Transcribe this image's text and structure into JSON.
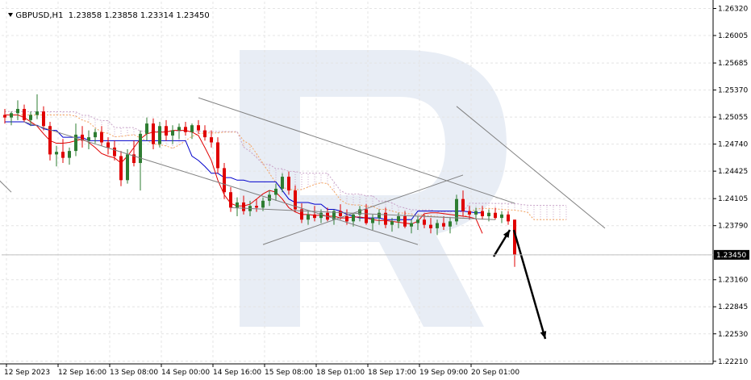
{
  "header": {
    "symbol": "GBPUSD,H1",
    "ohlc": "1.23858 1.23858 1.23314 1.23450"
  },
  "colors": {
    "bull_candle": "#2e7d32",
    "bear_candle": "#e00000",
    "tenkan": "#e00000",
    "kijun": "#0000cc",
    "cloud_a": "#f4a460",
    "cloud_b": "#c8a2c8",
    "trendline": "#808080",
    "arrow": "#000000",
    "watermark": "#e8edf5",
    "price_tag_bg": "#000000",
    "price_tag_fg": "#ffffff"
  },
  "chart_data": {
    "type": "candlestick",
    "title": "GBPUSD,H1",
    "y_ticks": [
      "1.26320",
      "1.26005",
      "1.25685",
      "1.25370",
      "1.25055",
      "1.24740",
      "1.24425",
      "1.24105",
      "1.23790",
      "1.23450",
      "1.23160",
      "1.22845",
      "1.22530",
      "1.22210"
    ],
    "y_tick_values": [
      1.2632,
      1.26005,
      1.25685,
      1.2537,
      1.25055,
      1.2474,
      1.24425,
      1.24105,
      1.2379,
      1.2345,
      1.2316,
      1.22845,
      1.2253,
      1.2221
    ],
    "ylim": [
      1.2218,
      1.264
    ],
    "current_price": "1.23450",
    "x_ticks": [
      "12 Sep 2023",
      "12 Sep 16:00",
      "13 Sep 08:00",
      "14 Sep 00:00",
      "14 Sep 16:00",
      "15 Sep 08:00",
      "18 Sep 01:00",
      "18 Sep 17:00",
      "19 Sep 09:00",
      "20 Sep 01:00"
    ],
    "candles": [
      [
        1.2508,
        1.2515,
        1.2498,
        1.2505
      ],
      [
        1.2505,
        1.2512,
        1.2496,
        1.251
      ],
      [
        1.251,
        1.2525,
        1.2502,
        1.2515
      ],
      [
        1.2515,
        1.252,
        1.25,
        1.2502
      ],
      [
        1.2502,
        1.2512,
        1.2495,
        1.2508
      ],
      [
        1.2508,
        1.2532,
        1.2503,
        1.2512
      ],
      [
        1.2512,
        1.2518,
        1.249,
        1.2495
      ],
      [
        1.2495,
        1.25,
        1.2455,
        1.2462
      ],
      [
        1.2462,
        1.2472,
        1.2448,
        1.2465
      ],
      [
        1.2465,
        1.248,
        1.2452,
        1.2458
      ],
      [
        1.2458,
        1.247,
        1.245,
        1.2466
      ],
      [
        1.2466,
        1.2498,
        1.246,
        1.2485
      ],
      [
        1.2485,
        1.2495,
        1.247,
        1.2478
      ],
      [
        1.2478,
        1.249,
        1.2468,
        1.2482
      ],
      [
        1.2482,
        1.2492,
        1.2475,
        1.2488
      ],
      [
        1.2488,
        1.2495,
        1.2472,
        1.2476
      ],
      [
        1.2476,
        1.2482,
        1.2462,
        1.247
      ],
      [
        1.247,
        1.2478,
        1.2455,
        1.246
      ],
      [
        1.246,
        1.2466,
        1.2425,
        1.2432
      ],
      [
        1.2432,
        1.2468,
        1.2428,
        1.2462
      ],
      [
        1.2462,
        1.2478,
        1.2448,
        1.2452
      ],
      [
        1.2452,
        1.249,
        1.242,
        1.2486
      ],
      [
        1.2486,
        1.2505,
        1.2478,
        1.2498
      ],
      [
        1.2498,
        1.2504,
        1.2468,
        1.2474
      ],
      [
        1.2474,
        1.25,
        1.247,
        1.2495
      ],
      [
        1.2495,
        1.2502,
        1.2478,
        1.2484
      ],
      [
        1.2484,
        1.2496,
        1.2474,
        1.249
      ],
      [
        1.249,
        1.2498,
        1.248,
        1.2494
      ],
      [
        1.2494,
        1.25,
        1.2484,
        1.2488
      ],
      [
        1.2488,
        1.2498,
        1.248,
        1.2496
      ],
      [
        1.2496,
        1.2502,
        1.2486,
        1.249
      ],
      [
        1.249,
        1.2496,
        1.2478,
        1.2482
      ],
      [
        1.2482,
        1.249,
        1.247,
        1.2476
      ],
      [
        1.2476,
        1.2482,
        1.244,
        1.2446
      ],
      [
        1.2446,
        1.2452,
        1.241,
        1.2418
      ],
      [
        1.2418,
        1.2424,
        1.2395,
        1.24
      ],
      [
        1.24,
        1.2412,
        1.239,
        1.2406
      ],
      [
        1.2406,
        1.2414,
        1.2392,
        1.2396
      ],
      [
        1.2396,
        1.2408,
        1.239,
        1.2402
      ],
      [
        1.2402,
        1.241,
        1.2395,
        1.24
      ],
      [
        1.24,
        1.2412,
        1.2396,
        1.2408
      ],
      [
        1.2408,
        1.242,
        1.2402,
        1.2415
      ],
      [
        1.2415,
        1.2428,
        1.2408,
        1.2422
      ],
      [
        1.2422,
        1.244,
        1.2418,
        1.2436
      ],
      [
        1.2436,
        1.2442,
        1.2415,
        1.242
      ],
      [
        1.242,
        1.2426,
        1.2395,
        1.2398
      ],
      [
        1.2398,
        1.2405,
        1.2382,
        1.2386
      ],
      [
        1.2386,
        1.2396,
        1.238,
        1.2392
      ],
      [
        1.2392,
        1.2402,
        1.2384,
        1.2388
      ],
      [
        1.2388,
        1.2398,
        1.2382,
        1.2394
      ],
      [
        1.2394,
        1.24,
        1.2384,
        1.2386
      ],
      [
        1.2386,
        1.2398,
        1.238,
        1.2396
      ],
      [
        1.2396,
        1.2404,
        1.2386,
        1.239
      ],
      [
        1.239,
        1.2398,
        1.238,
        1.2384
      ],
      [
        1.2384,
        1.2394,
        1.2378,
        1.2392
      ],
      [
        1.2392,
        1.2402,
        1.2384,
        1.2398
      ],
      [
        1.2398,
        1.2404,
        1.238,
        1.2382
      ],
      [
        1.2382,
        1.2392,
        1.2374,
        1.2388
      ],
      [
        1.2388,
        1.2398,
        1.238,
        1.2394
      ],
      [
        1.2394,
        1.24,
        1.2376,
        1.238
      ],
      [
        1.238,
        1.2388,
        1.2372,
        1.2384
      ],
      [
        1.2384,
        1.2394,
        1.2376,
        1.239
      ],
      [
        1.239,
        1.2396,
        1.2376,
        1.2378
      ],
      [
        1.2378,
        1.2386,
        1.237,
        1.2382
      ],
      [
        1.2382,
        1.239,
        1.2374,
        1.2386
      ],
      [
        1.2386,
        1.2392,
        1.2376,
        1.238
      ],
      [
        1.238,
        1.2388,
        1.237,
        1.2376
      ],
      [
        1.2376,
        1.2386,
        1.2368,
        1.2382
      ],
      [
        1.2382,
        1.239,
        1.2374,
        1.2378
      ],
      [
        1.2378,
        1.2388,
        1.237,
        1.2384
      ],
      [
        1.2384,
        1.2415,
        1.238,
        1.241
      ],
      [
        1.241,
        1.242,
        1.239,
        1.2396
      ],
      [
        1.2396,
        1.2402,
        1.2386,
        1.2392
      ],
      [
        1.2392,
        1.24,
        1.2386,
        1.2396
      ],
      [
        1.2396,
        1.2402,
        1.2386,
        1.239
      ],
      [
        1.239,
        1.2398,
        1.2384,
        1.2394
      ],
      [
        1.2394,
        1.24,
        1.2386,
        1.2388
      ],
      [
        1.2388,
        1.2396,
        1.2382,
        1.2392
      ],
      [
        1.2392,
        1.2396,
        1.238,
        1.2384
      ],
      [
        1.2386,
        1.2386,
        1.2331,
        1.2345
      ]
    ],
    "tenkan_sen": [
      1.2508,
      1.2508,
      1.2508,
      1.2505,
      1.25,
      1.2495,
      1.2486,
      1.2478,
      1.2475,
      1.2475,
      1.2476,
      1.2478,
      1.248,
      1.2476,
      1.247,
      1.2463,
      1.246,
      1.2458,
      1.2452,
      1.246,
      1.247,
      1.248,
      1.2486,
      1.2488,
      1.2488,
      1.2488,
      1.249,
      1.249,
      1.249,
      1.2488,
      1.2484,
      1.247,
      1.2455,
      1.2432,
      1.2415,
      1.2405,
      1.2402,
      1.2402,
      1.2404,
      1.241,
      1.2416,
      1.242,
      1.2418,
      1.241,
      1.24,
      1.2395,
      1.2392,
      1.2392,
      1.2391,
      1.2391,
      1.239,
      1.239,
      1.2388,
      1.2388,
      1.2389,
      1.2389,
      1.2388,
      1.2386,
      1.2385,
      1.2385,
      1.2384,
      1.2383,
      1.2382,
      1.2381,
      1.2384,
      1.2393,
      1.2394,
      1.2394,
      1.2393,
      1.2392,
      1.2391,
      1.239,
      1.2389,
      1.2387,
      1.237
    ],
    "kijun_sen": [
      1.25,
      1.25,
      1.25,
      1.25,
      1.2496,
      1.2496,
      1.2492,
      1.249,
      1.249,
      1.2482,
      1.2482,
      1.2482,
      1.2482,
      1.2478,
      1.2478,
      1.2478,
      1.2478,
      1.2478,
      1.2478,
      1.2478,
      1.2478,
      1.2478,
      1.2478,
      1.2478,
      1.2478,
      1.2478,
      1.2478,
      1.2478,
      1.2478,
      1.246,
      1.2455,
      1.2448,
      1.244,
      1.244,
      1.2435,
      1.2435,
      1.2432,
      1.2432,
      1.243,
      1.243,
      1.243,
      1.243,
      1.243,
      1.242,
      1.241,
      1.2406,
      1.2406,
      1.2406,
      1.2404,
      1.2404,
      1.2398,
      1.2398,
      1.2396,
      1.2392,
      1.239,
      1.2388,
      1.2388,
      1.2388,
      1.2388,
      1.2386,
      1.2386,
      1.2386,
      1.2386,
      1.2386,
      1.2396,
      1.2396,
      1.2396,
      1.2396,
      1.2396,
      1.2396,
      1.2396,
      1.2396,
      1.2395,
      1.2394,
      1.2394
    ],
    "trendlines": [
      [
        [
          -6,
          1.247
        ],
        [
          1.0,
          1.2418
        ]
      ],
      [
        [
          30,
          1.2528
        ],
        [
          79,
          1.2405
        ]
      ],
      [
        [
          70,
          1.2518
        ],
        [
          93,
          1.2376
        ]
      ],
      [
        [
          35,
          1.24
        ],
        [
          76,
          1.2386
        ]
      ],
      [
        [
          40,
          1.2357
        ],
        [
          71,
          1.2438
        ]
      ],
      [
        [
          3,
          1.25
        ],
        [
          64,
          1.2357
        ]
      ]
    ]
  }
}
